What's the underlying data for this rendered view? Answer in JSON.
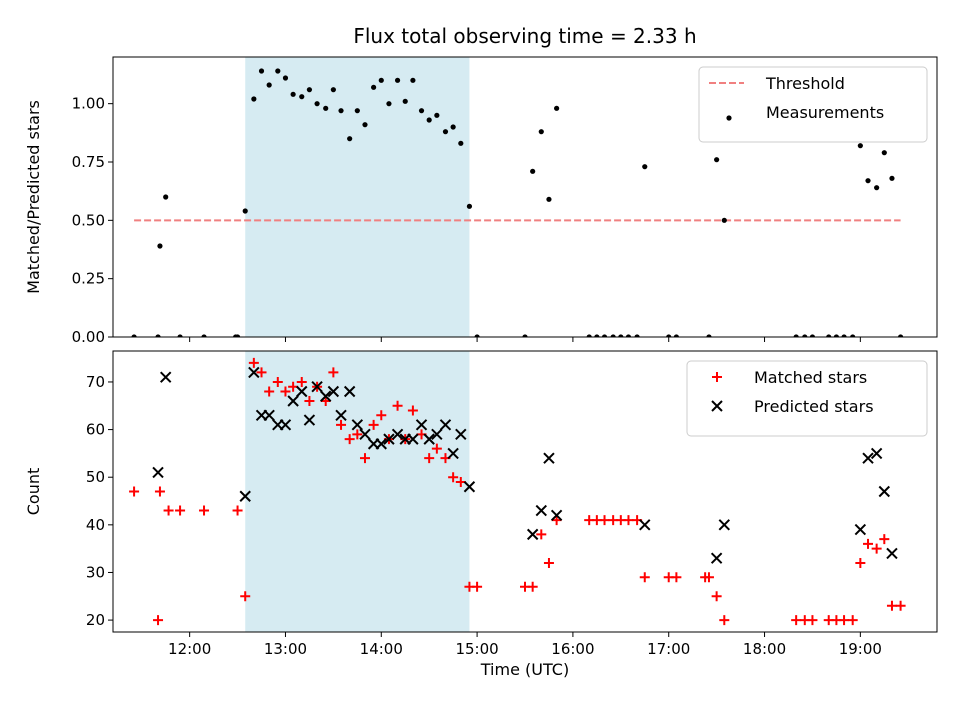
{
  "chart_data": [
    {
      "type": "scatter",
      "title": "Flux total observing time = 2.33 h",
      "xlabel": "",
      "ylabel": "Matched/Predicted stars",
      "xlim": [
        11.2,
        19.8
      ],
      "ylim": [
        0.0,
        1.2
      ],
      "yticks": [
        0.0,
        0.25,
        0.5,
        0.75,
        1.0
      ],
      "ytick_labels": [
        "0.00",
        "0.25",
        "0.50",
        "0.75",
        "1.00"
      ],
      "xticks": [
        12,
        13,
        14,
        15,
        16,
        17,
        18,
        19
      ],
      "xtick_labels": [],
      "shaded_region": {
        "x_start": 12.58,
        "x_end": 14.92,
        "color": "#add8e6"
      },
      "legend_position": "top-right",
      "series": [
        {
          "name": "Threshold",
          "kind": "dashed-line",
          "color": "#f08080",
          "x": [
            11.42,
            19.42
          ],
          "y": [
            0.5,
            0.5
          ]
        },
        {
          "name": "Measurements",
          "kind": "dot",
          "color": "#000000",
          "x": [
            11.42,
            11.67,
            11.69,
            11.75,
            11.9,
            12.15,
            12.48,
            12.5,
            12.58,
            12.67,
            12.75,
            12.83,
            12.92,
            13.0,
            13.08,
            13.17,
            13.25,
            13.33,
            13.42,
            13.5,
            13.58,
            13.67,
            13.75,
            13.83,
            13.92,
            14.0,
            14.08,
            14.17,
            14.25,
            14.33,
            14.42,
            14.5,
            14.58,
            14.67,
            14.75,
            14.83,
            14.92,
            15.0,
            15.5,
            15.58,
            15.67,
            15.75,
            15.83,
            16.17,
            16.25,
            16.33,
            16.42,
            16.5,
            16.58,
            16.67,
            16.75,
            17.0,
            17.08,
            17.42,
            17.5,
            17.58,
            18.33,
            18.42,
            18.5,
            18.67,
            18.75,
            18.83,
            18.92,
            19.0,
            19.08,
            19.17,
            19.25,
            19.33,
            19.42
          ],
          "y": [
            0.0,
            0.0,
            0.39,
            0.6,
            0.0,
            0.0,
            0.0,
            0.0,
            0.54,
            1.02,
            1.14,
            1.08,
            1.14,
            1.11,
            1.04,
            1.03,
            1.06,
            1.0,
            0.98,
            1.06,
            0.97,
            0.85,
            0.97,
            0.91,
            1.07,
            1.1,
            1.0,
            1.1,
            1.01,
            1.1,
            0.97,
            0.93,
            0.95,
            0.88,
            0.9,
            0.83,
            0.56,
            0.0,
            0.0,
            0.71,
            0.88,
            0.59,
            0.98,
            0.0,
            0.0,
            0.0,
            0.0,
            0.0,
            0.0,
            0.0,
            0.73,
            0.0,
            0.0,
            0.0,
            0.76,
            0.5,
            0.0,
            0.0,
            0.0,
            0.0,
            0.0,
            0.0,
            0.0,
            0.82,
            0.67,
            0.64,
            0.79,
            0.68,
            0.0
          ]
        }
      ]
    },
    {
      "type": "scatter",
      "title": "",
      "xlabel": "Time (UTC)",
      "ylabel": "Count",
      "xlim": [
        11.2,
        19.8
      ],
      "ylim": [
        17.5,
        76.5
      ],
      "yticks": [
        20,
        30,
        40,
        50,
        60,
        70
      ],
      "ytick_labels": [
        "20",
        "30",
        "40",
        "50",
        "60",
        "70"
      ],
      "xticks": [
        12,
        13,
        14,
        15,
        16,
        17,
        18,
        19
      ],
      "xtick_labels": [
        "12:00",
        "13:00",
        "14:00",
        "15:00",
        "16:00",
        "17:00",
        "18:00",
        "19:00"
      ],
      "shaded_region": {
        "x_start": 12.58,
        "x_end": 14.92,
        "color": "#add8e6"
      },
      "legend_position": "top-right",
      "series": [
        {
          "name": "Matched stars",
          "kind": "plus",
          "color": "#ff0000",
          "x": [
            11.42,
            11.67,
            11.69,
            11.78,
            11.9,
            12.15,
            12.5,
            12.58,
            12.67,
            12.75,
            12.83,
            12.92,
            13.0,
            13.08,
            13.17,
            13.25,
            13.33,
            13.42,
            13.5,
            13.58,
            13.67,
            13.75,
            13.83,
            13.92,
            14.0,
            14.08,
            14.17,
            14.25,
            14.33,
            14.42,
            14.5,
            14.58,
            14.67,
            14.75,
            14.83,
            14.92,
            15.0,
            15.5,
            15.58,
            15.67,
            15.75,
            15.83,
            16.17,
            16.25,
            16.33,
            16.42,
            16.5,
            16.58,
            16.67,
            16.75,
            17.0,
            17.08,
            17.38,
            17.42,
            17.5,
            17.58,
            18.33,
            18.42,
            18.5,
            18.67,
            18.75,
            18.83,
            18.92,
            19.0,
            19.08,
            19.17,
            19.25,
            19.33,
            19.42
          ],
          "y": [
            47,
            20,
            47,
            43,
            43,
            43,
            43,
            25,
            74,
            72,
            68,
            70,
            68,
            69,
            70,
            66,
            69,
            66,
            72,
            61,
            58,
            59,
            54,
            61,
            63,
            58,
            65,
            58,
            64,
            59,
            54,
            56,
            54,
            50,
            49,
            27,
            27,
            27,
            27,
            38,
            32,
            41,
            41,
            41,
            41,
            41,
            41,
            41,
            41,
            29,
            29,
            29,
            29,
            29,
            25,
            20,
            20,
            20,
            20,
            20,
            20,
            20,
            20,
            32,
            36,
            35,
            37,
            23,
            23
          ]
        },
        {
          "name": "Predicted stars",
          "kind": "x",
          "color": "#000000",
          "x": [
            11.67,
            11.75,
            12.58,
            12.67,
            12.75,
            12.83,
            12.92,
            13.0,
            13.08,
            13.17,
            13.25,
            13.33,
            13.42,
            13.5,
            13.58,
            13.67,
            13.75,
            13.83,
            13.92,
            14.0,
            14.08,
            14.17,
            14.25,
            14.33,
            14.42,
            14.5,
            14.58,
            14.67,
            14.75,
            14.83,
            14.92,
            15.58,
            15.67,
            15.75,
            15.83,
            16.75,
            17.5,
            17.58,
            19.0,
            19.08,
            19.17,
            19.25,
            19.33
          ],
          "y": [
            51,
            71,
            46,
            72,
            63,
            63,
            61,
            61,
            66,
            68,
            62,
            69,
            67,
            68,
            63,
            68,
            61,
            59,
            57,
            57,
            58,
            59,
            58,
            58,
            61,
            58,
            59,
            61,
            55,
            59,
            48,
            38,
            43,
            54,
            42,
            40,
            33,
            40,
            39,
            54,
            55,
            47,
            34
          ]
        }
      ]
    }
  ]
}
